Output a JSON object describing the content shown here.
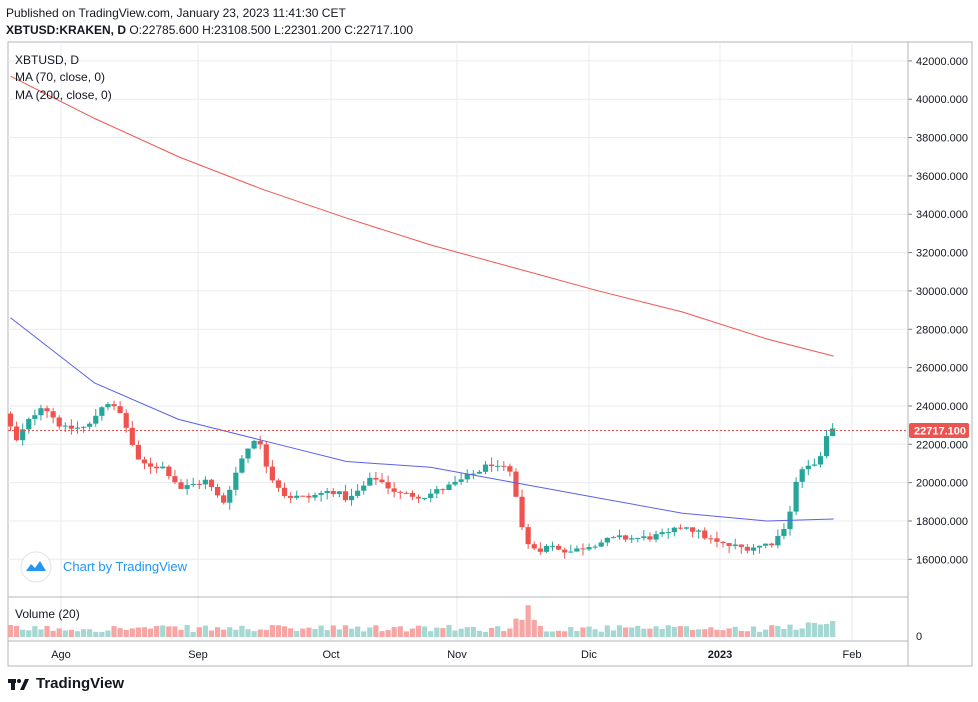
{
  "header": {
    "published": "Published on TradingView.com, January 23, 2023 11:41:30 CET",
    "symbol_line_prefix": "XBTUSD:KRAKEN, D",
    "ohlc": {
      "o_label": "O:",
      "o": "22785.600",
      "h_label": "H:",
      "h": "23108.500",
      "l_label": "L:",
      "l": "22301.200",
      "c_label": "C:",
      "c": "22717.100"
    }
  },
  "legend": {
    "symbol": "XBTUSD, D",
    "ma70": "MA (70, close, 0)",
    "ma200": "MA (200, close, 0)",
    "volume": "Volume (20)"
  },
  "watermark": {
    "text": "Chart by TradingView"
  },
  "footer": {
    "brand": "TradingView"
  },
  "colors": {
    "up": "#26a69a",
    "down": "#ef5350",
    "ma70": "#5b62e6",
    "ma200": "#f0554f",
    "grid": "#e9ebef",
    "axis": "#131722",
    "price_tag": "#ef5350"
  },
  "chart_data": {
    "type": "candlestick",
    "symbol": "XBTUSD:KRAKEN",
    "interval": "D",
    "last_price": "22717.100",
    "y_axis": {
      "range": [
        14000,
        42500
      ],
      "ticks": [
        "16000.000",
        "18000.000",
        "20000.000",
        "22000.000",
        "24000.000",
        "26000.000",
        "28000.000",
        "30000.000",
        "32000.000",
        "34000.000",
        "36000.000",
        "38000.000",
        "40000.000",
        "42000.000"
      ]
    },
    "x_axis": {
      "ticks": [
        "Ago",
        "Sep",
        "Oct",
        "Nov",
        "Dic",
        "2023",
        "Feb"
      ]
    },
    "volume_axis": {
      "ticks": [
        "0"
      ]
    },
    "monthly_closes_approx": [
      {
        "month": "Ago",
        "close": 20050
      },
      {
        "month": "Sep",
        "close": 19420
      },
      {
        "month": "Oct",
        "close": 20490
      },
      {
        "month": "Nov",
        "close": 17160
      },
      {
        "month": "Dic",
        "close": 16540
      },
      {
        "month": "2023",
        "close": 22717
      }
    ],
    "series": [
      {
        "name": "MA (70, close, 0)",
        "points": [
          [
            0,
            28600
          ],
          [
            40,
            25200
          ],
          [
            80,
            23300
          ],
          [
            120,
            22200
          ],
          [
            160,
            21100
          ],
          [
            200,
            20800
          ],
          [
            240,
            20000
          ],
          [
            280,
            19200
          ],
          [
            320,
            18400
          ],
          [
            360,
            18000
          ],
          [
            392,
            18100
          ]
        ]
      },
      {
        "name": "MA (200, close, 0)",
        "points": [
          [
            0,
            41200
          ],
          [
            40,
            39000
          ],
          [
            80,
            37000
          ],
          [
            120,
            35300
          ],
          [
            160,
            33800
          ],
          [
            200,
            32400
          ],
          [
            240,
            31200
          ],
          [
            280,
            30000
          ],
          [
            320,
            28900
          ],
          [
            360,
            27500
          ],
          [
            392,
            26600
          ]
        ]
      }
    ]
  }
}
